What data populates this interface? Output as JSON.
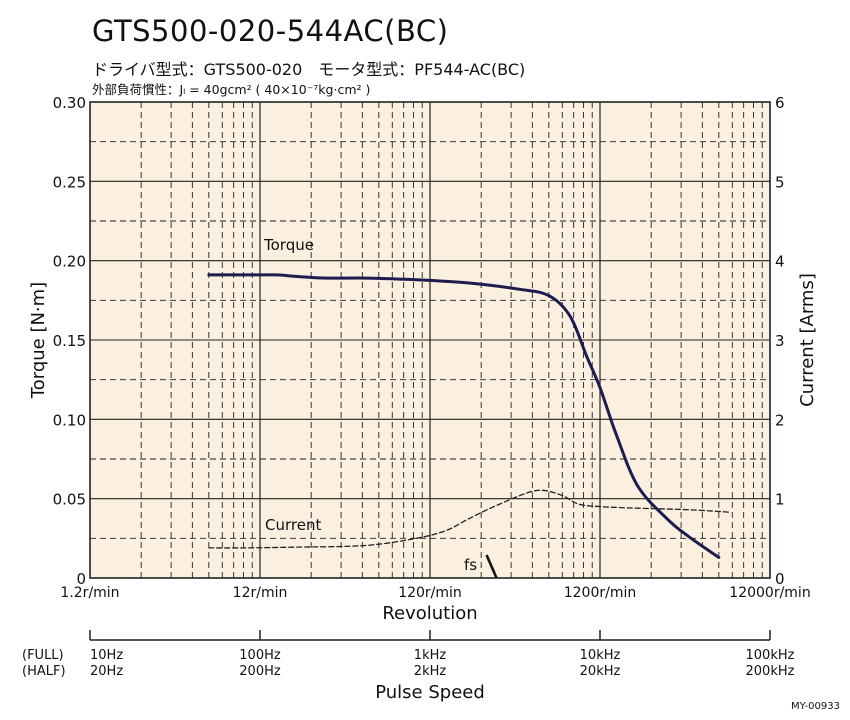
{
  "header": {
    "title": "GTS500-020-544AC(BC)",
    "line1": "ドライバ型式：GTS500-020　モータ型式：PF544-AC(BC)",
    "line2": "外部負荷慣性：Jₗ = 40gcm² ( 40×10⁻⁷kg·cm² )"
  },
  "figure_code": "MY-00933",
  "colors": {
    "plot_background": "#fbefe0",
    "torque_line": "#1c1c4e",
    "current_line": "#222222",
    "grid": "#222222"
  },
  "chart_data": {
    "type": "line",
    "x_scale": "log",
    "x_range_rpm": [
      1.2,
      12000
    ],
    "xlabel": "Revolution",
    "x_tick_labels": [
      "1.2r/min",
      "12r/min",
      "120r/min",
      "1200r/min",
      "12000r/min"
    ],
    "ylabel_left": "Torque [N·m]",
    "ylim_left": [
      0,
      0.3
    ],
    "y_ticks_left": [
      "0",
      "0.05",
      "0.10",
      "0.15",
      "0.20",
      "0.25",
      "0.30"
    ],
    "ylabel_right": "Current [Arms]",
    "ylim_right": [
      0,
      6
    ],
    "y_ticks_right": [
      "0",
      "1",
      "2",
      "3",
      "4",
      "5",
      "6"
    ],
    "grid": true,
    "series": [
      {
        "name": "Torque",
        "axis": "left",
        "x": [
          6,
          10,
          15,
          20,
          30,
          50,
          100,
          200,
          400,
          600,
          800,
          1000,
          1200,
          1500,
          2000,
          3000,
          4000,
          6000
        ],
        "values": [
          0.191,
          0.191,
          0.191,
          0.19,
          0.189,
          0.189,
          0.188,
          0.186,
          0.182,
          0.178,
          0.165,
          0.14,
          0.12,
          0.09,
          0.058,
          0.037,
          0.026,
          0.013
        ]
      },
      {
        "name": "Current",
        "axis": "right",
        "x": [
          6,
          10,
          20,
          50,
          100,
          150,
          200,
          300,
          500,
          700,
          900,
          1200,
          1500,
          2000,
          4000,
          7000
        ],
        "values": [
          0.38,
          0.38,
          0.39,
          0.41,
          0.5,
          0.6,
          0.74,
          0.92,
          1.1,
          1.05,
          0.93,
          0.9,
          0.89,
          0.88,
          0.86,
          0.83
        ]
      }
    ],
    "annotations": [
      {
        "text": "Torque"
      },
      {
        "text": "Current"
      },
      {
        "text": "fs",
        "x_rpm": 280
      }
    ],
    "pulse_speed": {
      "label": "Pulse Speed",
      "full_label": "(FULL)",
      "half_label": "(HALF)",
      "full_ticks": [
        "10Hz",
        "100Hz",
        "1kHz",
        "10kHz",
        "100kHz"
      ],
      "half_ticks": [
        "20Hz",
        "200Hz",
        "2kHz",
        "20kHz",
        "200kHz"
      ]
    }
  }
}
